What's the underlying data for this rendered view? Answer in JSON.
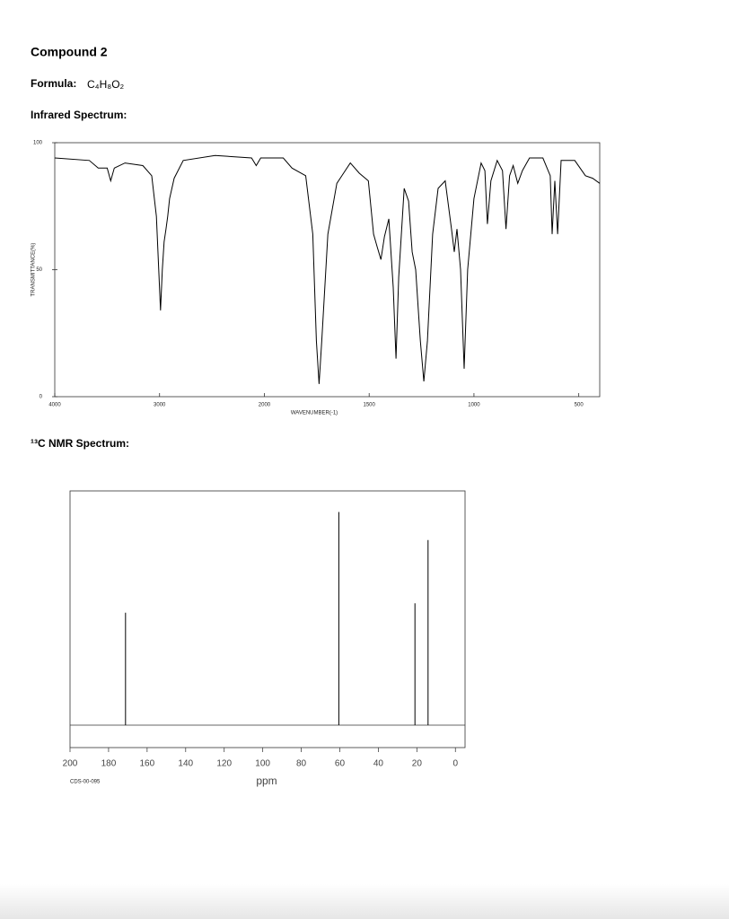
{
  "header": {
    "title": "Compound 2",
    "formula_label": "Formula:",
    "formula": "C₄H₈O₂"
  },
  "chart_data": [
    {
      "type": "line",
      "title": "Infrared Spectrum:",
      "x_label": "WAVENUMBER(-1)",
      "y_label": "TRANSMITTANCE(%)",
      "color": "#000000",
      "x": [
        4000,
        3670,
        3585,
        3500,
        3466,
        3432,
        3330,
        3160,
        3075,
        3030,
        3008,
        2991,
        2974,
        2957,
        2939,
        2922,
        2904,
        2861,
        2774,
        2470,
        2122,
        2078,
        2035,
        1910,
        1868,
        1803,
        1769,
        1752,
        1739,
        1726,
        1697,
        1654,
        1590,
        1547,
        1504,
        1479,
        1462,
        1444,
        1427,
        1406,
        1385,
        1372,
        1359,
        1333,
        1312,
        1295,
        1278,
        1256,
        1239,
        1222,
        1197,
        1171,
        1137,
        1107,
        1094,
        1081,
        1064,
        1047,
        1030,
        1000,
        966,
        948,
        936,
        919,
        889,
        864,
        847,
        830,
        813,
        791,
        769,
        735,
        671,
        636,
        627,
        614,
        601,
        584,
        519,
        468,
        434,
        400
      ],
      "values": [
        94,
        93,
        90,
        90,
        85,
        90,
        92,
        91,
        87,
        71,
        50,
        34,
        50,
        61,
        66,
        71,
        78,
        86,
        93,
        95,
        94,
        91,
        94,
        94,
        90,
        87,
        64,
        22,
        5,
        22,
        64,
        84,
        92,
        88,
        85,
        64,
        59,
        54,
        63,
        70,
        43,
        15,
        47,
        82,
        77,
        57,
        50,
        22,
        6,
        22,
        64,
        82,
        85,
        66,
        57,
        66,
        50,
        11,
        50,
        78,
        92,
        89,
        68,
        85,
        93,
        89,
        66,
        87,
        91,
        84,
        89,
        94,
        94,
        87,
        64,
        85,
        64,
        93,
        93,
        87,
        86,
        84
      ],
      "xlim": [
        4000,
        400
      ],
      "xticks": [
        4000,
        3000,
        2000,
        1500,
        1000,
        500
      ],
      "ylim": [
        0,
        100
      ],
      "yticks": [
        0,
        50,
        100
      ]
    },
    {
      "type": "stem",
      "title": "¹³C NMR Spectrum:",
      "x_label": "ppm",
      "annotation": "CDS-00-095",
      "color": "#000000",
      "x": [
        171.2,
        60.5,
        21.0,
        14.2
      ],
      "values": [
        48,
        91,
        52,
        79
      ],
      "xlim": [
        200,
        -5
      ],
      "xticks": [
        200,
        180,
        160,
        140,
        120,
        100,
        80,
        60,
        40,
        20,
        0
      ],
      "ylim": [
        0,
        100
      ]
    }
  ]
}
